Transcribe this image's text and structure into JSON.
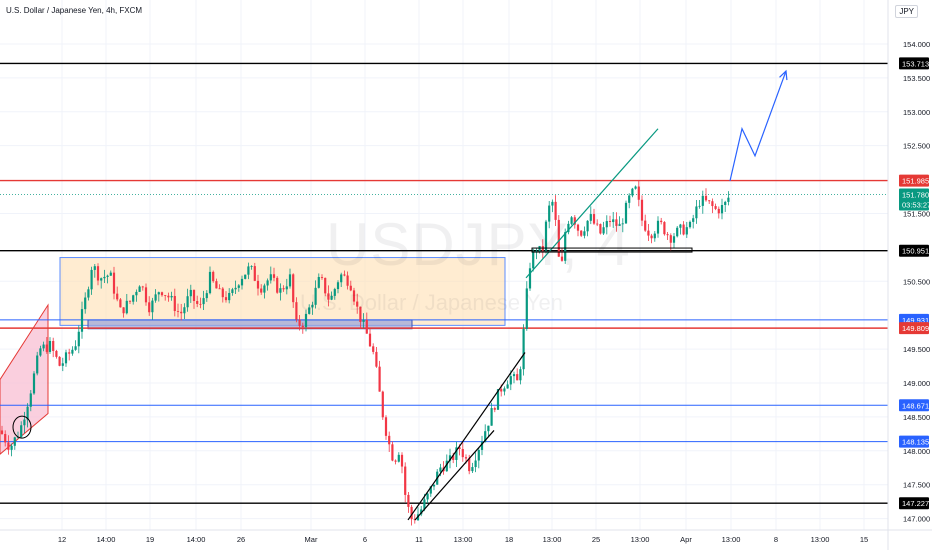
{
  "header": {
    "title": "U.S. Dollar / Japanese Yen, 4h, FXCM",
    "currency": "JPY"
  },
  "watermark": {
    "symbol": "USDJPY, 4",
    "name": "U.S. Dollar / Japanese Yen"
  },
  "chart_data": {
    "type": "candlestick",
    "symbol": "USDJPY",
    "interval": "4h",
    "ylim": [
      146.95,
      154.25
    ],
    "y_ticks": [
      147.0,
      147.5,
      148.0,
      148.5,
      149.0,
      149.5,
      150.5,
      151.5,
      152.5,
      153.0,
      153.5,
      154.0
    ],
    "y_tick_labels": [
      "147.000",
      "147.500",
      "148.000",
      "148.500",
      "149.000",
      "149.500",
      "150.500",
      "151.500",
      "152.500",
      "153.000",
      "153.500",
      "154.000"
    ],
    "x_tick_labels": [
      "12",
      "14:00",
      "19",
      "14:00",
      "26",
      "Mar",
      "6",
      "11",
      "13:00",
      "18",
      "13:00",
      "25",
      "13:00",
      "Apr",
      "13:00",
      "8",
      "13:00",
      "15"
    ],
    "price_levels": [
      {
        "value": 153.713,
        "label": "153.713",
        "color": "#000000"
      },
      {
        "value": 151.985,
        "label": "151.985",
        "color": "#e53935"
      },
      {
        "value": 150.951,
        "label": "150.951",
        "color": "#000000"
      },
      {
        "value": 149.931,
        "label": "149.931",
        "color": "#2962ff"
      },
      {
        "value": 149.809,
        "label": "149.809",
        "color": "#e53935"
      },
      {
        "value": 148.671,
        "label": "148.671",
        "color": "#2962ff"
      },
      {
        "value": 148.135,
        "label": "148.135",
        "color": "#2962ff"
      },
      {
        "value": 147.227,
        "label": "147.227",
        "color": "#000000"
      }
    ],
    "last_price": {
      "value": 151.78,
      "label": "151.780",
      "countdown": "03:53:27",
      "color": "#089981"
    },
    "series_path": [
      [
        0,
        148.3
      ],
      [
        10,
        148.05
      ],
      [
        20,
        148.3
      ],
      [
        30,
        148.85
      ],
      [
        40,
        149.5
      ],
      [
        50,
        149.55
      ],
      [
        60,
        149.25
      ],
      [
        75,
        149.55
      ],
      [
        85,
        150.2
      ],
      [
        92,
        150.75
      ],
      [
        100,
        150.55
      ],
      [
        110,
        150.6
      ],
      [
        120,
        150.05
      ],
      [
        130,
        150.2
      ],
      [
        140,
        150.5
      ],
      [
        150,
        150.1
      ],
      [
        160,
        150.4
      ],
      [
        170,
        150.25
      ],
      [
        180,
        150.0
      ],
      [
        190,
        150.3
      ],
      [
        200,
        150.1
      ],
      [
        210,
        150.55
      ],
      [
        220,
        150.3
      ],
      [
        230,
        150.25
      ],
      [
        240,
        150.55
      ],
      [
        250,
        150.7
      ],
      [
        260,
        150.4
      ],
      [
        270,
        150.55
      ],
      [
        280,
        150.35
      ],
      [
        290,
        150.55
      ],
      [
        296,
        149.85
      ],
      [
        304,
        149.9
      ],
      [
        312,
        150.2
      ],
      [
        320,
        150.55
      ],
      [
        330,
        150.2
      ],
      [
        340,
        150.6
      ],
      [
        350,
        150.5
      ],
      [
        358,
        150.05
      ],
      [
        366,
        149.75
      ],
      [
        374,
        149.4
      ],
      [
        382,
        148.6
      ],
      [
        388,
        148.15
      ],
      [
        394,
        147.85
      ],
      [
        400,
        148.05
      ],
      [
        406,
        147.25
      ],
      [
        412,
        146.98
      ],
      [
        420,
        147.1
      ],
      [
        430,
        147.4
      ],
      [
        440,
        147.75
      ],
      [
        450,
        147.85
      ],
      [
        460,
        148.05
      ],
      [
        470,
        147.75
      ],
      [
        480,
        148.1
      ],
      [
        490,
        148.5
      ],
      [
        500,
        148.9
      ],
      [
        510,
        149.1
      ],
      [
        518,
        149.0
      ],
      [
        522,
        149.45
      ],
      [
        526,
        150.2
      ],
      [
        530,
        150.75
      ],
      [
        536,
        151.0
      ],
      [
        542,
        150.9
      ],
      [
        548,
        151.55
      ],
      [
        554,
        151.7
      ],
      [
        558,
        150.85
      ],
      [
        562,
        150.75
      ],
      [
        566,
        151.35
      ],
      [
        572,
        151.5
      ],
      [
        580,
        151.2
      ],
      [
        590,
        151.45
      ],
      [
        600,
        151.2
      ],
      [
        610,
        151.4
      ],
      [
        620,
        151.3
      ],
      [
        630,
        151.75
      ],
      [
        636,
        151.85
      ],
      [
        642,
        151.4
      ],
      [
        650,
        151.2
      ],
      [
        660,
        151.35
      ],
      [
        670,
        151.15
      ],
      [
        680,
        151.25
      ],
      [
        690,
        151.3
      ],
      [
        700,
        151.7
      ],
      [
        708,
        151.65
      ],
      [
        716,
        151.55
      ],
      [
        724,
        151.6
      ],
      [
        730,
        151.78
      ]
    ],
    "annotations": {
      "range_box": {
        "x": [
          60,
          505
        ],
        "y": [
          149.85,
          150.85
        ]
      },
      "support_box": {
        "x": [
          88,
          412
        ],
        "y": [
          149.8,
          149.93
        ]
      },
      "rising_channel": {
        "x": [
          0,
          48
        ],
        "y_low": [
          147.95,
          148.55
        ],
        "y_high": [
          149.05,
          150.15
        ]
      },
      "trend_lines": [
        {
          "points": [
            [
              408,
              146.98
            ],
            [
              525,
              149.45
            ]
          ],
          "color": "#000000"
        },
        {
          "points": [
            [
              415,
              146.98
            ],
            [
              494,
              148.3
            ]
          ],
          "color": "#000000"
        },
        {
          "points": [
            [
              526,
              150.55
            ],
            [
              658,
              152.75
            ]
          ],
          "color": "#089981"
        }
      ],
      "breakout_rect": {
        "x": [
          532,
          692
        ],
        "y": [
          150.95,
          150.99
        ]
      },
      "circle": {
        "x": 22,
        "y": 148.35
      },
      "projection": {
        "points": [
          [
            730,
            151.98
          ],
          [
            742,
            152.75
          ],
          [
            755,
            152.35
          ],
          [
            786,
            153.6
          ]
        ],
        "color": "#2962ff"
      }
    }
  }
}
